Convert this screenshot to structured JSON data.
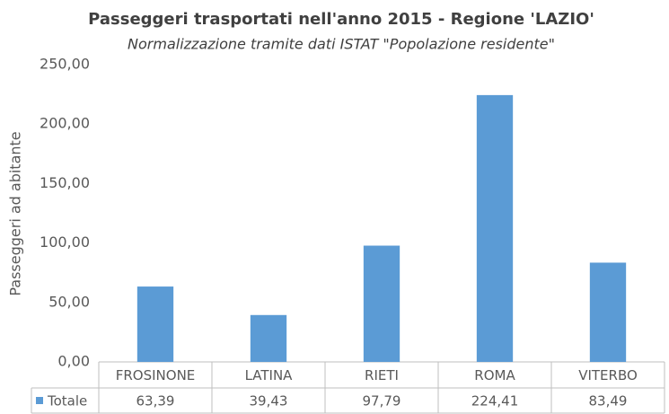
{
  "chart_data": {
    "type": "bar",
    "title": "Passeggeri trasportati nell'anno 2015 - Regione 'LAZIO'",
    "subtitle": "Normalizzazione tramite dati ISTAT \"Popolazione residente\"",
    "y_label": "Passeggeri ad abitante",
    "categories": [
      "FROSINONE",
      "LATINA",
      "RIETI",
      "ROMA",
      "VITERBO"
    ],
    "series": [
      {
        "name": "Totale",
        "color": "#5b9bd5",
        "values": [
          63.39,
          39.43,
          97.79,
          224.41,
          83.49
        ],
        "value_labels": [
          "63,39",
          "39,43",
          "97,79",
          "224,41",
          "83,49"
        ]
      }
    ],
    "ylim": [
      0,
      250
    ],
    "yticks": [
      {
        "value": 0,
        "label": "0,00"
      },
      {
        "value": 50,
        "label": "50,00"
      },
      {
        "value": 100,
        "label": "100,00"
      },
      {
        "value": 150,
        "label": "150,00"
      },
      {
        "value": 200,
        "label": "200,00"
      },
      {
        "value": 250,
        "label": "250,00"
      }
    ],
    "grid": false
  }
}
